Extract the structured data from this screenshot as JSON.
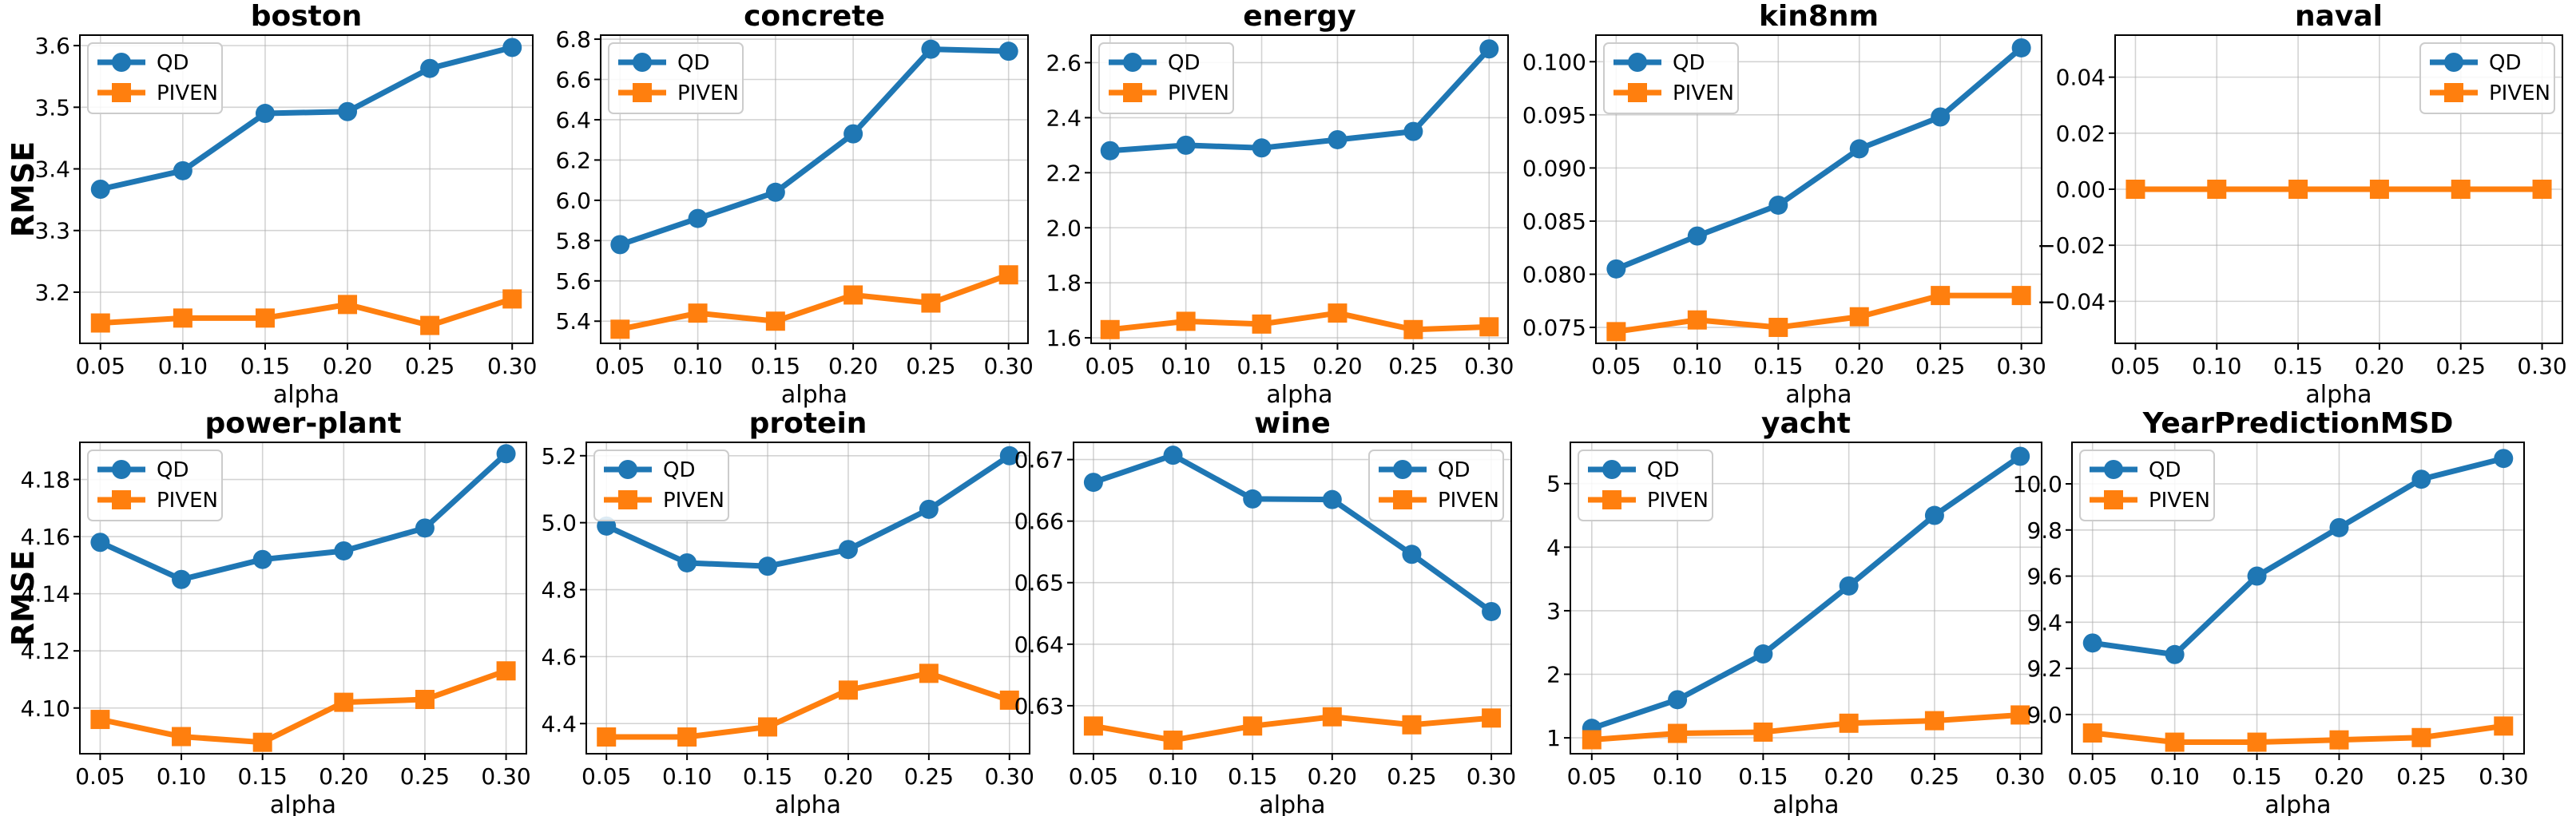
{
  "figure": {
    "ylabel": "RMSE",
    "xlabel": "alpha",
    "series_names": [
      "QD",
      "PIVEN"
    ],
    "colors": {
      "QD": "#1f77b4",
      "PIVEN": "#ff7f0e"
    }
  },
  "chart_data": [
    {
      "type": "line",
      "title": "boston",
      "xlabel": "alpha",
      "ylabel": "RMSE",
      "x": [
        0.05,
        0.1,
        0.15,
        0.2,
        0.25,
        0.3
      ],
      "series": [
        {
          "name": "QD",
          "marker": "circle",
          "values": [
            3.367,
            3.397,
            3.49,
            3.493,
            3.563,
            3.597
          ]
        },
        {
          "name": "PIVEN",
          "marker": "square",
          "values": [
            3.15,
            3.158,
            3.158,
            3.18,
            3.146,
            3.189
          ]
        }
      ],
      "ylim": [
        3.117,
        3.617
      ],
      "yticks": [
        3.2,
        3.3,
        3.4,
        3.5,
        3.6
      ],
      "ytick_labels": [
        "3.2",
        "3.3",
        "3.4",
        "3.5",
        "3.6"
      ],
      "xticks": [
        "0.05",
        "0.10",
        "0.15",
        "0.20",
        "0.25",
        "0.30"
      ],
      "legend": "upper-left",
      "grid": true
    },
    {
      "type": "line",
      "title": "concrete",
      "xlabel": "alpha",
      "ylabel": "",
      "x": [
        0.05,
        0.1,
        0.15,
        0.2,
        0.25,
        0.3
      ],
      "series": [
        {
          "name": "QD",
          "marker": "circle",
          "values": [
            5.78,
            5.91,
            6.04,
            6.33,
            6.75,
            6.74
          ]
        },
        {
          "name": "PIVEN",
          "marker": "square",
          "values": [
            5.36,
            5.44,
            5.4,
            5.53,
            5.49,
            5.63
          ]
        }
      ],
      "ylim": [
        5.29,
        6.82
      ],
      "yticks": [
        5.4,
        5.6,
        5.8,
        6.0,
        6.2,
        6.4,
        6.6,
        6.8
      ],
      "ytick_labels": [
        "5.4",
        "5.6",
        "5.8",
        "6.0",
        "6.2",
        "6.4",
        "6.6",
        "6.8"
      ],
      "xticks": [
        "0.05",
        "0.10",
        "0.15",
        "0.20",
        "0.25",
        "0.30"
      ],
      "legend": "upper-left",
      "grid": true
    },
    {
      "type": "line",
      "title": "energy",
      "xlabel": "alpha",
      "ylabel": "",
      "x": [
        0.05,
        0.1,
        0.15,
        0.2,
        0.25,
        0.3
      ],
      "series": [
        {
          "name": "QD",
          "marker": "circle",
          "values": [
            2.28,
            2.3,
            2.29,
            2.32,
            2.35,
            2.65
          ]
        },
        {
          "name": "PIVEN",
          "marker": "square",
          "values": [
            1.63,
            1.66,
            1.65,
            1.69,
            1.63,
            1.64
          ]
        }
      ],
      "ylim": [
        1.58,
        2.7
      ],
      "yticks": [
        1.6,
        1.8,
        2.0,
        2.2,
        2.4,
        2.6
      ],
      "ytick_labels": [
        "1.6",
        "1.8",
        "2.0",
        "2.2",
        "2.4",
        "2.6"
      ],
      "xticks": [
        "0.05",
        "0.10",
        "0.15",
        "0.20",
        "0.25",
        "0.30"
      ],
      "legend": "upper-left",
      "grid": true
    },
    {
      "type": "line",
      "title": "kin8nm",
      "xlabel": "alpha",
      "ylabel": "",
      "x": [
        0.05,
        0.1,
        0.15,
        0.2,
        0.25,
        0.3
      ],
      "series": [
        {
          "name": "QD",
          "marker": "circle",
          "values": [
            0.0805,
            0.0836,
            0.0865,
            0.0918,
            0.0948,
            0.1013
          ]
        },
        {
          "name": "PIVEN",
          "marker": "square",
          "values": [
            0.0746,
            0.0757,
            0.075,
            0.076,
            0.078,
            0.078
          ]
        }
      ],
      "ylim": [
        0.0735,
        0.1025
      ],
      "yticks": [
        0.075,
        0.08,
        0.085,
        0.09,
        0.095,
        0.1
      ],
      "ytick_labels": [
        "0.075",
        "0.080",
        "0.085",
        "0.090",
        "0.095",
        "0.100"
      ],
      "xticks": [
        "0.05",
        "0.10",
        "0.15",
        "0.20",
        "0.25",
        "0.30"
      ],
      "legend": "upper-left",
      "grid": true
    },
    {
      "type": "line",
      "title": "naval",
      "xlabel": "alpha",
      "ylabel": "",
      "x": [
        0.05,
        0.1,
        0.15,
        0.2,
        0.25,
        0.3
      ],
      "series": [
        {
          "name": "QD",
          "marker": "circle",
          "values": [
            0,
            0,
            0,
            0,
            0,
            0
          ]
        },
        {
          "name": "PIVEN",
          "marker": "square",
          "values": [
            0,
            0,
            0,
            0,
            0,
            0
          ]
        }
      ],
      "ylim": [
        -0.055,
        0.055
      ],
      "yticks": [
        -0.04,
        -0.02,
        0.0,
        0.02,
        0.04
      ],
      "ytick_labels": [
        "−0.04",
        "−0.02",
        "0.00",
        "0.02",
        "0.04"
      ],
      "xticks": [
        "0.05",
        "0.10",
        "0.15",
        "0.20",
        "0.25",
        "0.30"
      ],
      "legend": "upper-right",
      "grid": true
    },
    {
      "type": "line",
      "title": "power-plant",
      "xlabel": "alpha",
      "ylabel": "RMSE",
      "x": [
        0.05,
        0.1,
        0.15,
        0.2,
        0.25,
        0.3
      ],
      "series": [
        {
          "name": "QD",
          "marker": "circle",
          "values": [
            4.158,
            4.145,
            4.152,
            4.155,
            4.163,
            4.189
          ]
        },
        {
          "name": "PIVEN",
          "marker": "square",
          "values": [
            4.096,
            4.09,
            4.088,
            4.102,
            4.103,
            4.113
          ]
        }
      ],
      "ylim": [
        4.084,
        4.193
      ],
      "yticks": [
        4.1,
        4.12,
        4.14,
        4.16,
        4.18
      ],
      "ytick_labels": [
        "4.10",
        "4.12",
        "4.14",
        "4.16",
        "4.18"
      ],
      "xticks": [
        "0.05",
        "0.10",
        "0.15",
        "0.20",
        "0.25",
        "0.30"
      ],
      "legend": "upper-left",
      "grid": true
    },
    {
      "type": "line",
      "title": "protein",
      "xlabel": "alpha",
      "ylabel": "",
      "x": [
        0.05,
        0.1,
        0.15,
        0.2,
        0.25,
        0.3
      ],
      "series": [
        {
          "name": "QD",
          "marker": "circle",
          "values": [
            4.99,
            4.88,
            4.87,
            4.92,
            5.04,
            5.2
          ]
        },
        {
          "name": "PIVEN",
          "marker": "square",
          "values": [
            4.36,
            4.36,
            4.39,
            4.5,
            4.55,
            4.47
          ]
        }
      ],
      "ylim": [
        4.31,
        5.24
      ],
      "yticks": [
        4.4,
        4.6,
        4.8,
        5.0,
        5.2
      ],
      "ytick_labels": [
        "4.4",
        "4.6",
        "4.8",
        "5.0",
        "5.2"
      ],
      "xticks": [
        "0.05",
        "0.10",
        "0.15",
        "0.20",
        "0.25",
        "0.30"
      ],
      "legend": "upper-left",
      "grid": true
    },
    {
      "type": "line",
      "title": "wine",
      "xlabel": "alpha",
      "ylabel": "",
      "x": [
        0.05,
        0.1,
        0.15,
        0.2,
        0.25,
        0.3
      ],
      "series": [
        {
          "name": "QD",
          "marker": "circle",
          "values": [
            0.6663,
            0.6707,
            0.6636,
            0.6635,
            0.6546,
            0.6453
          ]
        },
        {
          "name": "PIVEN",
          "marker": "square",
          "values": [
            0.6267,
            0.6244,
            0.6267,
            0.6282,
            0.6269,
            0.628
          ]
        }
      ],
      "ylim": [
        0.6222,
        0.6728
      ],
      "yticks": [
        0.63,
        0.64,
        0.65,
        0.66,
        0.67
      ],
      "ytick_labels": [
        "0.63",
        "0.64",
        "0.65",
        "0.66",
        "0.67"
      ],
      "xticks": [
        "0.05",
        "0.10",
        "0.15",
        "0.20",
        "0.25",
        "0.30"
      ],
      "legend": "upper-right",
      "grid": true
    },
    {
      "type": "line",
      "title": "yacht",
      "xlabel": "alpha",
      "ylabel": "",
      "x": [
        0.05,
        0.1,
        0.15,
        0.2,
        0.25,
        0.3
      ],
      "series": [
        {
          "name": "QD",
          "marker": "circle",
          "values": [
            1.15,
            1.6,
            2.32,
            3.39,
            4.5,
            5.43
          ]
        },
        {
          "name": "PIVEN",
          "marker": "square",
          "values": [
            0.97,
            1.07,
            1.09,
            1.23,
            1.27,
            1.36
          ]
        }
      ],
      "ylim": [
        0.75,
        5.65
      ],
      "yticks": [
        1,
        2,
        3,
        4,
        5
      ],
      "ytick_labels": [
        "1",
        "2",
        "3",
        "4",
        "5"
      ],
      "xticks": [
        "0.05",
        "0.10",
        "0.15",
        "0.20",
        "0.25",
        "0.30"
      ],
      "legend": "upper-left",
      "grid": true
    },
    {
      "type": "line",
      "title": "YearPredictionMSD",
      "xlabel": "alpha",
      "ylabel": "",
      "x": [
        0.05,
        0.1,
        0.15,
        0.2,
        0.25,
        0.3
      ],
      "series": [
        {
          "name": "QD",
          "marker": "circle",
          "values": [
            9.31,
            9.26,
            9.6,
            9.81,
            10.02,
            10.11
          ]
        },
        {
          "name": "PIVEN",
          "marker": "square",
          "values": [
            8.92,
            8.88,
            8.88,
            8.89,
            8.9,
            8.95
          ]
        }
      ],
      "ylim": [
        8.83,
        10.18
      ],
      "yticks": [
        9.0,
        9.2,
        9.4,
        9.6,
        9.8,
        10.0
      ],
      "ytick_labels": [
        "9.0",
        "9.2",
        "9.4",
        "9.6",
        "9.8",
        "10.0"
      ],
      "xticks": [
        "0.05",
        "0.10",
        "0.15",
        "0.20",
        "0.25",
        "0.30"
      ],
      "legend": "upper-left",
      "grid": true
    }
  ]
}
